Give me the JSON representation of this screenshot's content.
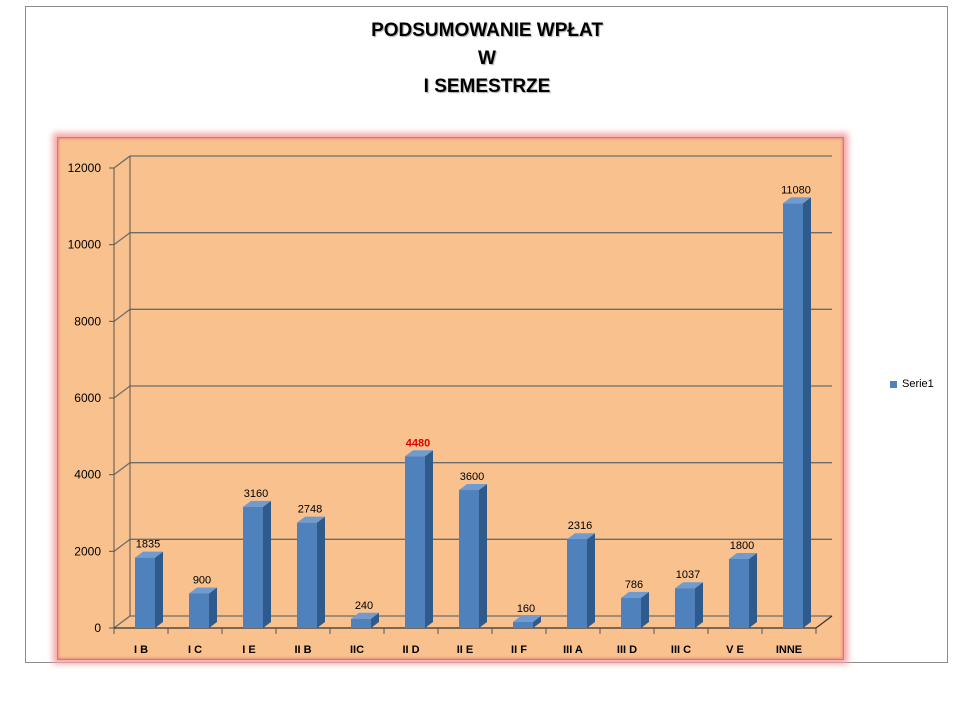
{
  "chart_data": {
    "type": "bar",
    "title_lines": [
      "PODSUMOWANIE WPŁAT",
      "W",
      "I SEMESTRZE"
    ],
    "categories": [
      "I B",
      "I C",
      "I E",
      "II B",
      "IIC",
      "II D",
      "II E",
      "II F",
      "III A",
      "III D",
      "III C",
      "V E",
      "INNE"
    ],
    "series": [
      {
        "name": "Serie1",
        "values": [
          1835,
          900,
          3160,
          2748,
          240,
          4480,
          3600,
          160,
          2316,
          786,
          1037,
          1800,
          11080
        ]
      }
    ],
    "highlight_label": {
      "category": "II D",
      "color": "#e00000"
    },
    "ylim": [
      0,
      12000
    ],
    "yticks": [
      0,
      2000,
      4000,
      6000,
      8000,
      10000,
      12000
    ],
    "grid": true,
    "legend_position": "right",
    "colors": {
      "bar_front": "#4f81bd",
      "bar_side": "#2e5a8c",
      "bar_top": "#6f9bd1",
      "plot_fill": "#f9c18d",
      "gridline": "#6d6d6d"
    }
  }
}
